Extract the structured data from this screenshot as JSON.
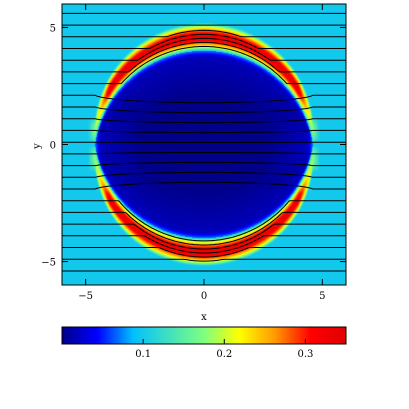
{
  "chart_data": {
    "type": "heatmap",
    "title": "",
    "xlabel": "x",
    "ylabel": "y",
    "xlim": [
      -6,
      6
    ],
    "ylim": [
      -6,
      6
    ],
    "x_ticks": [
      {
        "value": -5,
        "label": "−5"
      },
      {
        "value": 0,
        "label": "0"
      },
      {
        "value": 5,
        "label": "5"
      }
    ],
    "y_ticks": [
      {
        "value": 5,
        "label": "5"
      },
      {
        "value": 0,
        "label": "0"
      },
      {
        "value": -5,
        "label": "−5"
      }
    ],
    "field": {
      "background_value": 0.1,
      "inner_region": {
        "shape": "lens",
        "half_width_x": 4.6,
        "half_height_y": 4.0,
        "value": 0.0
      },
      "shell": {
        "thickness": 0.85,
        "peak_value": 0.33
      }
    },
    "contour_levels_y_outside": [
      5.6,
      5.1,
      4.6,
      4.1,
      3.6,
      3.1,
      2.6,
      2.1,
      1.6,
      1.1,
      0.6,
      0.1,
      -0.4,
      -0.9,
      -1.4,
      -1.9,
      -2.4,
      -2.9,
      -3.4,
      -3.9,
      -4.4,
      -4.9,
      -5.4
    ],
    "colorbar": {
      "range": [
        0.0,
        0.35
      ],
      "ticks": [
        {
          "value": 0.1,
          "label": "0.1"
        },
        {
          "value": 0.2,
          "label": "0.2"
        },
        {
          "value": 0.3,
          "label": "0.3"
        }
      ],
      "colors": [
        "#00008b",
        "#0000ff",
        "#00bfff",
        "#40e0c0",
        "#7fff7f",
        "#ffff00",
        "#ff9900",
        "#ff0000",
        "#e00000"
      ]
    },
    "grid": false,
    "legend": "none"
  }
}
